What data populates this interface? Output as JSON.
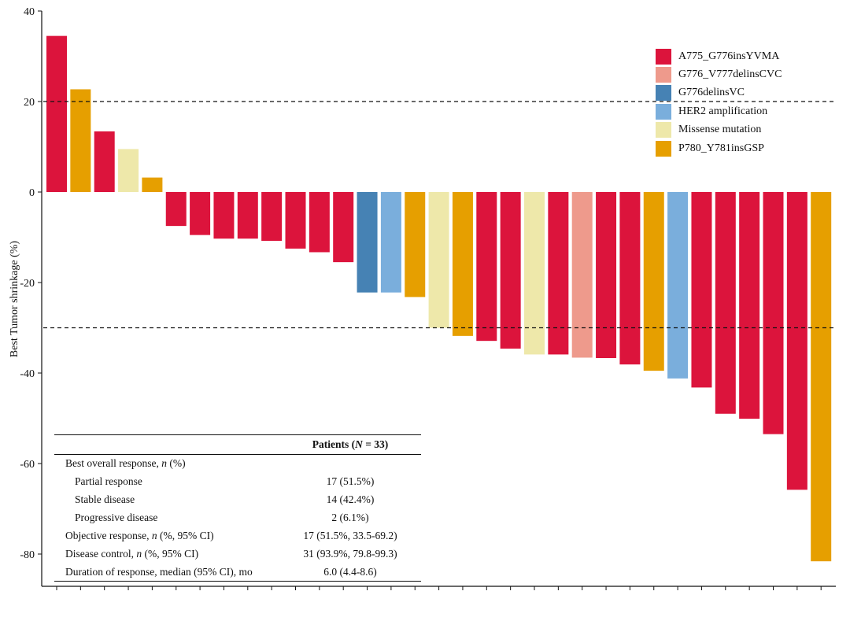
{
  "chart_data": {
    "type": "bar",
    "title": "",
    "xlabel": "",
    "ylabel": "Best Tumor shrinkage (%)",
    "ylim": [
      -87,
      40
    ],
    "yticks": [
      40,
      20,
      0,
      -20,
      -40,
      -60,
      -80
    ],
    "reference_lines": [
      20,
      -30
    ],
    "grid": false,
    "legend_position": "top-right",
    "colors": {
      "A775_G776insYVMA": "#dc143c",
      "G776_V777delinsCVC": "#ee9a8c",
      "G776delinsVC": "#4682b4",
      "HER2 amplification": "#7aaedc",
      "Missense mutation": "#eee8aa",
      "P780_Y781insGSP": "#e69f00"
    },
    "legend": [
      "A775_G776insYVMA",
      "G776_V777delinsCVC",
      "G776delinsVC",
      "HER2 amplification",
      "Missense mutation",
      "P780_Y781insGSP"
    ],
    "bars": [
      {
        "value": 34.5,
        "group": "A775_G776insYVMA"
      },
      {
        "value": 22.7,
        "group": "P780_Y781insGSP"
      },
      {
        "value": 13.4,
        "group": "A775_G776insYVMA"
      },
      {
        "value": 9.5,
        "group": "Missense mutation"
      },
      {
        "value": 3.2,
        "group": "P780_Y781insGSP"
      },
      {
        "value": -7.5,
        "group": "A775_G776insYVMA"
      },
      {
        "value": -9.5,
        "group": "A775_G776insYVMA"
      },
      {
        "value": -10.3,
        "group": "A775_G776insYVMA"
      },
      {
        "value": -10.3,
        "group": "A775_G776insYVMA"
      },
      {
        "value": -10.8,
        "group": "A775_G776insYVMA"
      },
      {
        "value": -12.5,
        "group": "A775_G776insYVMA"
      },
      {
        "value": -13.3,
        "group": "A775_G776insYVMA"
      },
      {
        "value": -15.5,
        "group": "A775_G776insYVMA"
      },
      {
        "value": -22.2,
        "group": "G776delinsVC"
      },
      {
        "value": -22.2,
        "group": "HER2 amplification"
      },
      {
        "value": -23.2,
        "group": "P780_Y781insGSP"
      },
      {
        "value": -30.0,
        "group": "Missense mutation"
      },
      {
        "value": -31.8,
        "group": "P780_Y781insGSP"
      },
      {
        "value": -32.9,
        "group": "A775_G776insYVMA"
      },
      {
        "value": -34.6,
        "group": "A775_G776insYVMA"
      },
      {
        "value": -35.9,
        "group": "Missense mutation"
      },
      {
        "value": -35.9,
        "group": "A775_G776insYVMA"
      },
      {
        "value": -36.6,
        "group": "G776_V777delinsCVC"
      },
      {
        "value": -36.7,
        "group": "A775_G776insYVMA"
      },
      {
        "value": -38.1,
        "group": "A775_G776insYVMA"
      },
      {
        "value": -39.5,
        "group": "P780_Y781insGSP"
      },
      {
        "value": -41.2,
        "group": "HER2 amplification"
      },
      {
        "value": -43.2,
        "group": "A775_G776insYVMA"
      },
      {
        "value": -49.0,
        "group": "A775_G776insYVMA"
      },
      {
        "value": -50.1,
        "group": "A775_G776insYVMA"
      },
      {
        "value": -53.5,
        "group": "A775_G776insYVMA"
      },
      {
        "value": -65.8,
        "group": "A775_G776insYVMA"
      },
      {
        "value": -81.6,
        "group": "P780_Y781insGSP"
      }
    ]
  },
  "table": {
    "header_label": "Patients (",
    "header_n": "N",
    "header_value": " = 33)",
    "rows": [
      {
        "indent": false,
        "pre": "Best overall response, ",
        "italic": "n",
        "post": " (%)",
        "value": ""
      },
      {
        "indent": true,
        "pre": "Partial response",
        "italic": "",
        "post": "",
        "value": "17 (51.5%)"
      },
      {
        "indent": true,
        "pre": "Stable disease",
        "italic": "",
        "post": "",
        "value": "14 (42.4%)"
      },
      {
        "indent": true,
        "pre": "Progressive disease",
        "italic": "",
        "post": "",
        "value": "2 (6.1%)"
      },
      {
        "indent": false,
        "pre": "Objective response, ",
        "italic": "n",
        "post": " (%, 95% CI)",
        "value": "17 (51.5%, 33.5-69.2)"
      },
      {
        "indent": false,
        "pre": "Disease control, ",
        "italic": "n",
        "post": " (%, 95% CI)",
        "value": "31 (93.9%, 79.8-99.3)"
      },
      {
        "indent": false,
        "pre": "Duration of response, median (95% CI), mo",
        "italic": "",
        "post": "",
        "value": "6.0 (4.4-8.6)"
      }
    ]
  }
}
